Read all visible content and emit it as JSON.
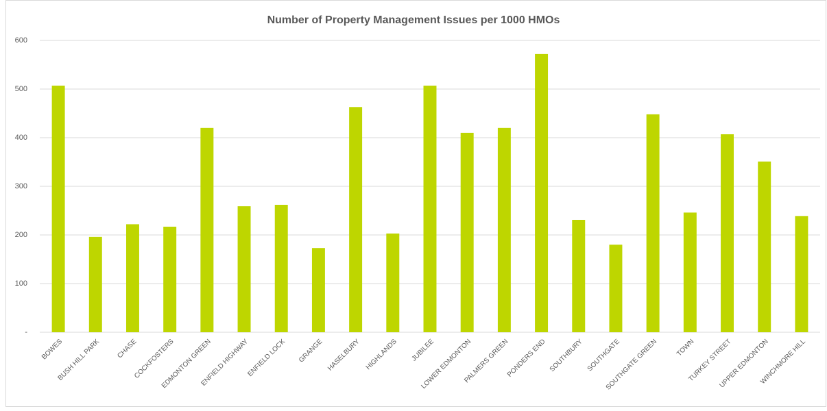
{
  "chart_data": {
    "type": "bar",
    "title": "Number of Property Management Issues per 1000 HMOs",
    "categories": [
      "BOWES",
      "BUSH HILL PARK",
      "CHASE",
      "COCKFOSTERS",
      "EDMONTON GREEN",
      "ENFIELD HIGHWAY",
      "ENFIELD LOCK",
      "GRANGE",
      "HASELBURY",
      "HIGHLANDS",
      "JUBILEE",
      "LOWER EDMONTON",
      "PALMERS GREEN",
      "PONDERS END",
      "SOUTHBURY",
      "SOUTHGATE",
      "SOUTHGATE GREEN",
      "TOWN",
      "TURKEY STREET",
      "UPPER EDMONTON",
      "WINCHMORE HILL"
    ],
    "values": [
      507,
      196,
      222,
      217,
      420,
      259,
      262,
      173,
      463,
      203,
      507,
      410,
      420,
      572,
      231,
      180,
      448,
      246,
      407,
      351,
      239
    ],
    "color": "#bed600",
    "ylim": [
      0,
      600
    ],
    "yticks": [
      {
        "value": 0,
        "label": "-"
      },
      100,
      200,
      300,
      400,
      500,
      600
    ],
    "grid": true
  }
}
